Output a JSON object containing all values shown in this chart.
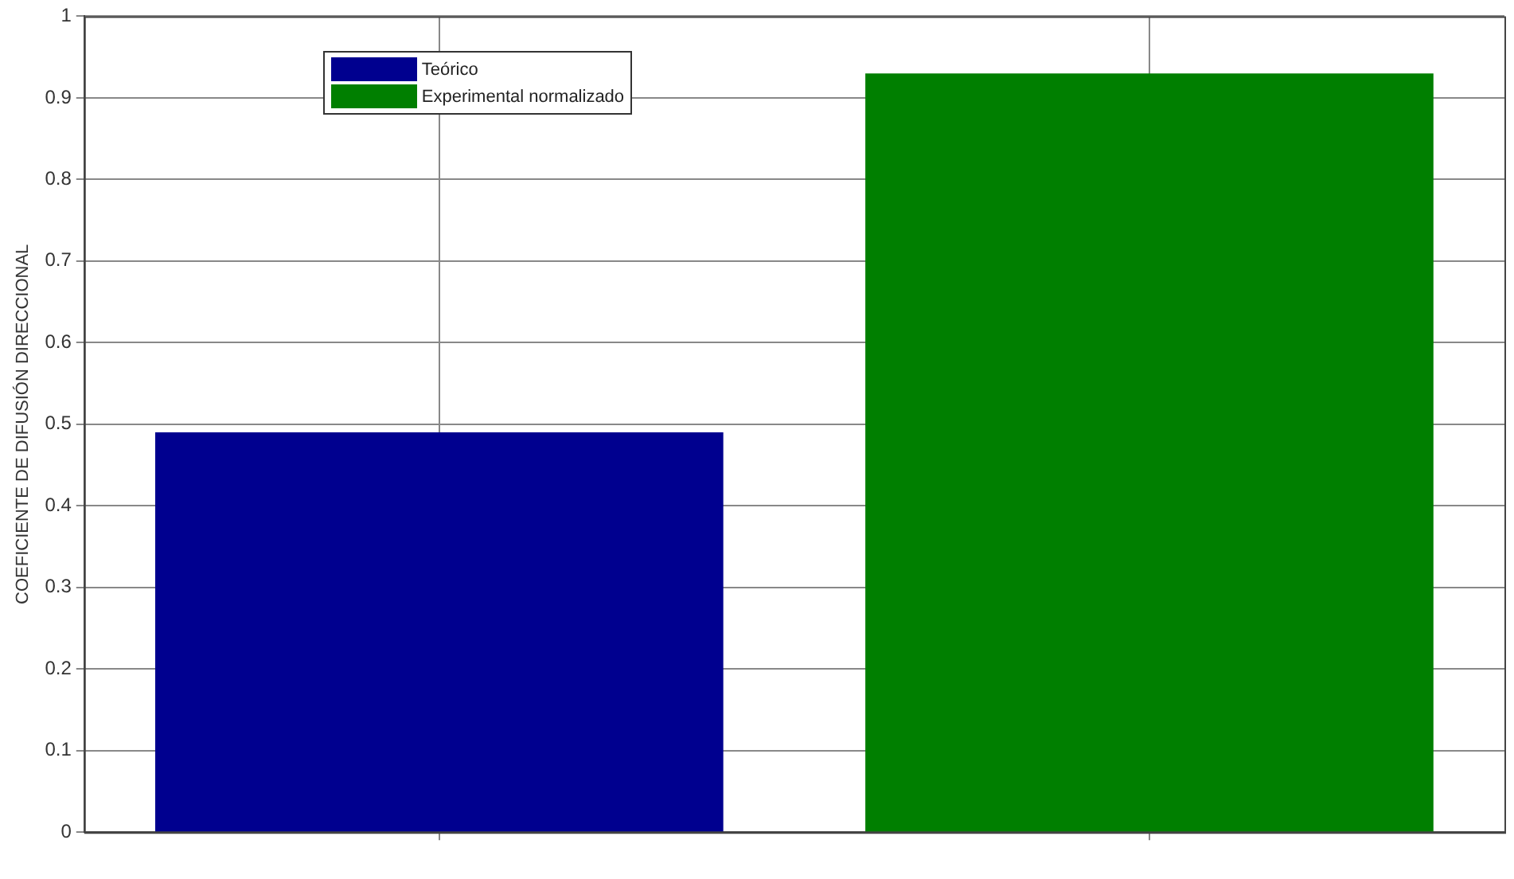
{
  "chart_data": {
    "type": "bar",
    "ylabel": "COEFICIENTE DE DIFUSIÓN DIRECCIONAL",
    "categories": [
      null,
      null
    ],
    "series": [
      {
        "name": "Teórico",
        "color": "#00008f",
        "values": [
          0.49,
          null
        ]
      },
      {
        "name": "Experimental normalizado",
        "color": "#007f00",
        "values": [
          null,
          0.93
        ]
      }
    ],
    "ylim": [
      0,
      1
    ],
    "yticks": [
      0,
      0.1,
      0.2,
      0.3,
      0.4,
      0.5,
      0.6,
      0.7,
      0.8,
      0.9,
      1
    ],
    "grid": true,
    "legend": "top left"
  }
}
